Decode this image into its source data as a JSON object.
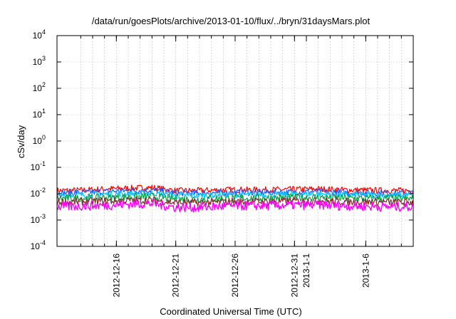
{
  "chart_data": {
    "type": "line",
    "title": "/data/run/goesPlots/archive/2013-01-10/flux/../bryn/31daysMars.plot",
    "xlabel": "Coordinated Universal Time (UTC)",
    "ylabel": "cSv/day",
    "yscale": "log",
    "ylim": [
      0.0001,
      10000
    ],
    "xlim": [
      "2012-12-11",
      "2013-01-10"
    ],
    "grid": true,
    "y_ticks": [
      {
        "base": "10",
        "exp": "-4",
        "value": 0.0001
      },
      {
        "base": "10",
        "exp": "-3",
        "value": 0.001
      },
      {
        "base": "10",
        "exp": "-2",
        "value": 0.01
      },
      {
        "base": "10",
        "exp": "-1",
        "value": 0.1
      },
      {
        "base": "10",
        "exp": "0",
        "value": 1
      },
      {
        "base": "10",
        "exp": "1",
        "value": 10
      },
      {
        "base": "10",
        "exp": "2",
        "value": 100
      },
      {
        "base": "10",
        "exp": "3",
        "value": 1000
      },
      {
        "base": "10",
        "exp": "4",
        "value": 10000
      }
    ],
    "x_ticks": [
      {
        "date": "2012-12-16",
        "label": "2012-12-16"
      },
      {
        "date": "2012-12-21",
        "label": "2012-12-21"
      },
      {
        "date": "2012-12-26",
        "label": "2012-12-26"
      },
      {
        "date": "2012-12-31",
        "label": "2012-12-31"
      },
      {
        "date": "2013-01-01",
        "label": "2013-1-1"
      },
      {
        "date": "2013-01-06",
        "label": "2013-1-6"
      }
    ],
    "x_grid_dates": [
      "2012-12-13",
      "2012-12-14",
      "2012-12-15",
      "2012-12-16",
      "2012-12-17",
      "2012-12-18",
      "2012-12-19",
      "2012-12-20",
      "2012-12-21",
      "2012-12-22",
      "2012-12-23",
      "2012-12-24",
      "2012-12-25",
      "2012-12-26",
      "2012-12-27",
      "2012-12-28",
      "2012-12-29",
      "2012-12-30",
      "2012-12-31",
      "2013-01-01",
      "2013-01-02",
      "2013-01-03",
      "2013-01-04",
      "2013-01-05",
      "2013-01-06",
      "2013-01-07",
      "2013-01-08",
      "2013-01-09",
      "2013-01-10"
    ],
    "series": [
      {
        "color": "#ff0000",
        "x": [
          "2012-12-11",
          "2012-12-13",
          "2012-12-15",
          "2012-12-17",
          "2012-12-19",
          "2012-12-21",
          "2012-12-23",
          "2012-12-25",
          "2012-12-27",
          "2012-12-29",
          "2012-12-31",
          "2013-01-02",
          "2013-01-04",
          "2013-01-06",
          "2013-01-08",
          "2013-01-10"
        ],
        "values": [
          0.013,
          0.0135,
          0.015,
          0.016,
          0.017,
          0.013,
          0.013,
          0.014,
          0.014,
          0.014,
          0.0145,
          0.015,
          0.014,
          0.0135,
          0.0132,
          0.013
        ]
      },
      {
        "color": "#1e5bff",
        "x": [
          "2012-12-11",
          "2012-12-13",
          "2012-12-15",
          "2012-12-17",
          "2012-12-19",
          "2012-12-21",
          "2012-12-23",
          "2012-12-25",
          "2012-12-27",
          "2012-12-29",
          "2012-12-31",
          "2013-01-02",
          "2013-01-04",
          "2013-01-06",
          "2013-01-08",
          "2013-01-10"
        ],
        "values": [
          0.0105,
          0.011,
          0.012,
          0.013,
          0.0135,
          0.0105,
          0.0105,
          0.011,
          0.011,
          0.011,
          0.0115,
          0.012,
          0.011,
          0.011,
          0.0105,
          0.0105
        ]
      },
      {
        "color": "#00c8ff",
        "x": [
          "2012-12-11",
          "2012-12-13",
          "2012-12-15",
          "2012-12-17",
          "2012-12-19",
          "2012-12-21",
          "2012-12-23",
          "2012-12-25",
          "2012-12-27",
          "2012-12-29",
          "2012-12-31",
          "2013-01-02",
          "2013-01-04",
          "2013-01-06",
          "2013-01-08",
          "2013-01-10"
        ],
        "values": [
          0.0085,
          0.009,
          0.0095,
          0.01,
          0.0105,
          0.0085,
          0.0085,
          0.009,
          0.009,
          0.009,
          0.0095,
          0.0098,
          0.009,
          0.009,
          0.0088,
          0.0087
        ]
      },
      {
        "color": "#00a040",
        "x": [
          "2012-12-11",
          "2012-12-13",
          "2012-12-15",
          "2012-12-17",
          "2012-12-19",
          "2012-12-21",
          "2012-12-23",
          "2012-12-25",
          "2012-12-27",
          "2012-12-29",
          "2012-12-31",
          "2013-01-02",
          "2013-01-04",
          "2013-01-06",
          "2013-01-08",
          "2013-01-10"
        ],
        "values": [
          0.0065,
          0.0068,
          0.007,
          0.0075,
          0.0078,
          0.0062,
          0.0062,
          0.0066,
          0.0068,
          0.0068,
          0.007,
          0.0072,
          0.0068,
          0.0066,
          0.0065,
          0.0064
        ]
      },
      {
        "color": "#8a2a2a",
        "x": [
          "2012-12-11",
          "2012-12-13",
          "2012-12-15",
          "2012-12-17",
          "2012-12-19",
          "2012-12-21",
          "2012-12-23",
          "2012-12-25",
          "2012-12-27",
          "2012-12-29",
          "2012-12-31",
          "2013-01-02",
          "2013-01-04",
          "2013-01-06",
          "2013-01-08",
          "2013-01-10"
        ],
        "values": [
          0.0048,
          0.005,
          0.0052,
          0.0055,
          0.0057,
          0.0045,
          0.0045,
          0.0048,
          0.005,
          0.005,
          0.0052,
          0.0053,
          0.005,
          0.0048,
          0.0047,
          0.0047
        ]
      },
      {
        "color": "#ff00ff",
        "x": [
          "2012-12-11",
          "2012-12-13",
          "2012-12-15",
          "2012-12-17",
          "2012-12-19",
          "2012-12-21",
          "2012-12-23",
          "2012-12-25",
          "2012-12-27",
          "2012-12-29",
          "2012-12-31",
          "2013-01-02",
          "2013-01-04",
          "2013-01-06",
          "2013-01-08",
          "2013-01-10"
        ],
        "values": [
          0.0032,
          0.0034,
          0.0036,
          0.004,
          0.0042,
          0.003,
          0.003,
          0.0033,
          0.0035,
          0.0035,
          0.0037,
          0.0038,
          0.0035,
          0.0033,
          0.0032,
          0.0032
        ]
      }
    ]
  }
}
